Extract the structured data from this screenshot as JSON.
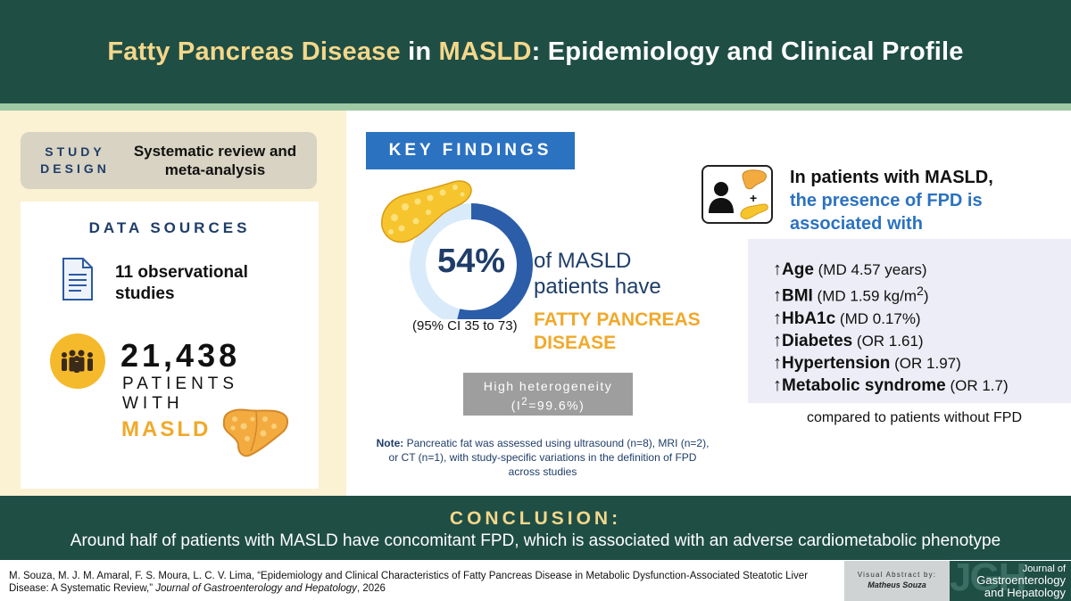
{
  "header": {
    "title_part1": "Fatty Pancreas Disease",
    "title_part2": " in ",
    "title_part3": "MASLD",
    "title_part4": ": Epidemiology and Clinical Profile"
  },
  "study_design": {
    "label_line1": "STUDY",
    "label_line2": "DESIGN",
    "value_line1": "Systematic review and",
    "value_line2": "meta-analysis"
  },
  "data_sources": {
    "title": "DATA SOURCES",
    "studies_line1": "11 observational",
    "studies_line2": "studies",
    "patients_number": "21,438",
    "patients_line1": "PATIENTS",
    "patients_line2": "WITH",
    "condition": "MASLD"
  },
  "key_findings": {
    "title": "KEY FINDINGS",
    "prevalence": "54%",
    "prevalence_fraction": 0.54,
    "ci": "(95% CI 35 to 73)",
    "text_line1": "of MASLD",
    "text_line2": "patients have",
    "fpd_line1": "FATTY PANCREAS",
    "fpd_line2": "DISEASE",
    "heterogeneity_line1": "High heterogeneity",
    "heterogeneity_line2_prefix": "(I",
    "heterogeneity_sup": "2",
    "heterogeneity_line2_suffix": "=99.6%)",
    "note_label": "Note:",
    "note_text": " Pancreatic fat was assessed using ultrasound (n=8), MRI (n=2), or CT (n=1), with study-specific variations in the definition of FPD across studies"
  },
  "association": {
    "line1": "In patients with MASLD,",
    "line2": "the presence of FPD is",
    "line3": "associated with",
    "arrow": "↑",
    "items": [
      {
        "term": "Age",
        "detail": " (MD 4.57 years)"
      },
      {
        "term": "BMI",
        "detail": " (MD 1.59 kg/m",
        "sup": "2",
        "detail_end": ")"
      },
      {
        "term": "HbA1c",
        "detail": " (MD 0.17%)"
      },
      {
        "term": "Diabetes",
        "detail": " (OR 1.61)"
      },
      {
        "term": "Hypertension",
        "detail": " (OR 1.97)"
      },
      {
        "term": "Metabolic syndrome",
        "detail": " (OR 1.7)"
      }
    ],
    "compared": "compared to patients without FPD"
  },
  "conclusion": {
    "title": "CONCLUSION:",
    "text": "Around half of patients with MASLD have concomitant FPD, which is associated with an adverse cardiometabolic phenotype"
  },
  "citation": {
    "authors_title": "M. Souza, M. J. M. Amaral, F. S. Moura, L. C. V. Lima, “Epidemiology and Clinical Characteristics of Fatty Pancreas Disease in Metabolic Dysfunction-Associated Steatotic Liver Disease: A Systematic Review,” ",
    "journal": "Journal of Gastroenterology and Hepatology",
    "year": ", 2026"
  },
  "visual_abstract": {
    "title": "Visual Abstract by:",
    "author": "Matheus Souza"
  },
  "journal_logo": {
    "line1": "Journal of",
    "line2": "Gastroenterology",
    "line3": "and Hepatology"
  },
  "colors": {
    "header_bg": "#1f4e45",
    "title_highlight": "#f4d78a",
    "accent_blue": "#2b72c1",
    "navy": "#1f3d68",
    "orange": "#f0a92b",
    "left_panel_bg": "#fbf1d3"
  },
  "icons": {
    "document": "document-icon",
    "people": "people-group-icon",
    "liver": "liver-icon",
    "pancreas": "pancreas-icon",
    "patient": "patient-icon"
  }
}
